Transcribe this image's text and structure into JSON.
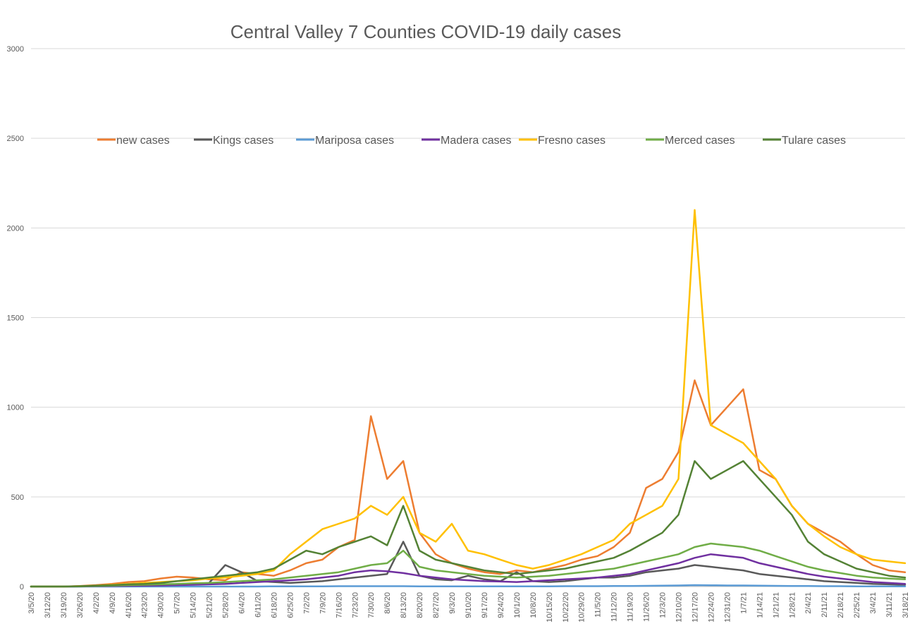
{
  "chart_data": {
    "type": "line",
    "title": "Central Valley 7 Counties COVID-19 daily cases",
    "xlabel": "",
    "ylabel": "",
    "ylim": [
      0,
      3000
    ],
    "yticks": [
      0,
      500,
      1000,
      1500,
      2000,
      2500,
      3000
    ],
    "grid": true,
    "legend_position": "top",
    "x_tick_labels": [
      "3/5/20",
      "3/12/20",
      "3/19/20",
      "3/26/20",
      "4/2/20",
      "4/9/20",
      "4/16/20",
      "4/23/20",
      "4/30/20",
      "5/7/20",
      "5/14/20",
      "5/21/20",
      "5/28/20",
      "6/4/20",
      "6/11/20",
      "6/18/20",
      "6/25/20",
      "7/2/20",
      "7/9/20",
      "7/16/20",
      "7/23/20",
      "7/30/20",
      "8/6/20",
      "8/13/20",
      "8/20/20",
      "8/27/20",
      "9/3/20",
      "9/10/20",
      "9/17/20",
      "9/24/20",
      "10/1/20",
      "10/8/20",
      "10/15/20",
      "10/22/20",
      "10/29/20",
      "11/5/20",
      "11/12/20",
      "11/19/20",
      "11/26/20",
      "12/3/20",
      "12/10/20",
      "12/17/20",
      "12/24/20",
      "12/31/20",
      "1/7/21",
      "1/14/21",
      "1/21/21",
      "1/28/21",
      "2/4/21",
      "2/11/21",
      "2/18/21",
      "2/25/21",
      "3/4/21",
      "3/11/21",
      "3/18/21"
    ],
    "series": [
      {
        "name": "new cases",
        "color": "#ED7D31",
        "values": [
          0,
          0,
          0,
          3,
          8,
          15,
          25,
          30,
          45,
          55,
          50,
          40,
          35,
          80,
          70,
          60,
          90,
          130,
          150,
          220,
          260,
          950,
          600,
          700,
          300,
          180,
          130,
          100,
          80,
          70,
          90,
          80,
          100,
          120,
          150,
          170,
          220,
          300,
          550,
          600,
          750,
          1150,
          900,
          1000,
          1100,
          650,
          600,
          450,
          350,
          300,
          250,
          180,
          120,
          90,
          80
        ]
      },
      {
        "name": "Kings cases",
        "color": "#595959",
        "values": [
          0,
          0,
          0,
          0,
          2,
          3,
          5,
          6,
          10,
          12,
          15,
          20,
          120,
          80,
          30,
          25,
          20,
          25,
          30,
          40,
          50,
          60,
          70,
          250,
          60,
          40,
          35,
          60,
          40,
          30,
          80,
          30,
          25,
          30,
          40,
          50,
          50,
          60,
          80,
          90,
          100,
          120,
          110,
          100,
          90,
          70,
          60,
          50,
          40,
          30,
          25,
          20,
          15,
          12,
          10
        ]
      },
      {
        "name": "Mariposa cases",
        "color": "#5B9BD5",
        "values": [
          0,
          0,
          0,
          0,
          0,
          0,
          0,
          0,
          0,
          0,
          0,
          0,
          0,
          0,
          0,
          1,
          1,
          1,
          1,
          2,
          2,
          2,
          2,
          2,
          1,
          1,
          1,
          1,
          1,
          1,
          1,
          1,
          1,
          2,
          2,
          2,
          3,
          3,
          4,
          5,
          6,
          8,
          7,
          6,
          6,
          5,
          4,
          3,
          3,
          2,
          2,
          1,
          1,
          1,
          1
        ]
      },
      {
        "name": "Madera cases",
        "color": "#7030A0",
        "values": [
          0,
          0,
          0,
          1,
          2,
          3,
          4,
          5,
          6,
          8,
          10,
          12,
          15,
          20,
          25,
          30,
          35,
          40,
          50,
          60,
          80,
          90,
          85,
          75,
          60,
          50,
          40,
          35,
          30,
          28,
          25,
          30,
          35,
          40,
          45,
          50,
          60,
          70,
          90,
          110,
          130,
          160,
          180,
          170,
          160,
          130,
          110,
          90,
          70,
          55,
          45,
          35,
          25,
          20,
          15
        ]
      },
      {
        "name": "Fresno cases",
        "color": "#FFC000",
        "values": [
          0,
          0,
          0,
          2,
          5,
          10,
          15,
          20,
          25,
          30,
          35,
          45,
          50,
          60,
          70,
          90,
          180,
          250,
          320,
          350,
          380,
          450,
          400,
          500,
          300,
          250,
          350,
          200,
          180,
          150,
          120,
          100,
          120,
          150,
          180,
          220,
          260,
          350,
          400,
          450,
          600,
          2100,
          900,
          850,
          800,
          700,
          600,
          450,
          350,
          280,
          220,
          180,
          150,
          140,
          130
        ]
      },
      {
        "name": "Merced cases",
        "color": "#70AD47",
        "values": [
          0,
          0,
          0,
          1,
          3,
          5,
          8,
          10,
          12,
          15,
          18,
          20,
          25,
          30,
          35,
          40,
          50,
          60,
          70,
          80,
          100,
          120,
          130,
          200,
          110,
          90,
          80,
          70,
          60,
          55,
          50,
          55,
          60,
          70,
          80,
          90,
          100,
          120,
          140,
          160,
          180,
          220,
          240,
          230,
          220,
          200,
          170,
          140,
          110,
          90,
          75,
          60,
          50,
          45,
          40
        ]
      },
      {
        "name": "Tulare cases",
        "color": "#548235",
        "values": [
          0,
          0,
          0,
          2,
          5,
          8,
          12,
          15,
          20,
          30,
          40,
          50,
          60,
          70,
          80,
          100,
          150,
          200,
          180,
          220,
          250,
          280,
          230,
          450,
          200,
          150,
          130,
          110,
          90,
          80,
          70,
          80,
          90,
          100,
          120,
          140,
          160,
          200,
          250,
          300,
          400,
          700,
          600,
          650,
          700,
          600,
          500,
          400,
          250,
          180,
          140,
          100,
          80,
          60,
          50
        ]
      }
    ]
  }
}
